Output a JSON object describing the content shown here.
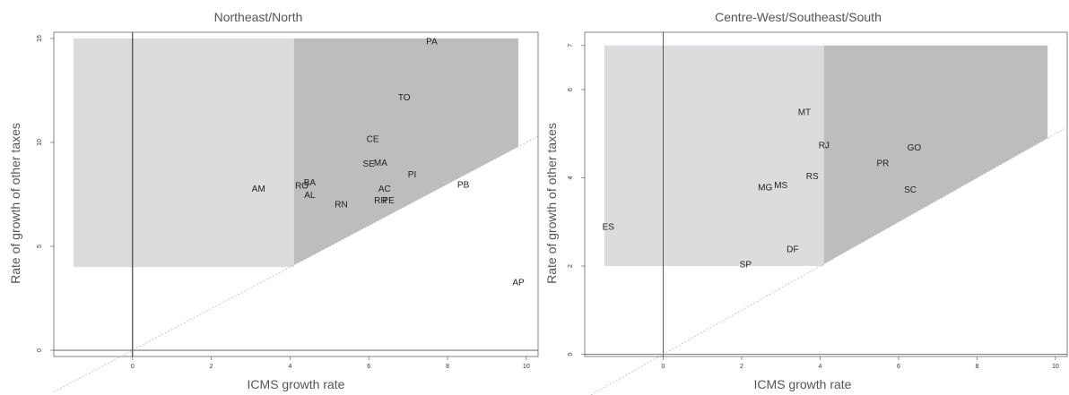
{
  "chart_data": [
    {
      "type": "scatter",
      "title": "Northeast/North",
      "xlabel": "ICMS growth rate",
      "ylabel": "Rate of growth of other taxes",
      "xlim": [
        -2,
        10.3
      ],
      "ylim": [
        -0.3,
        15.3
      ],
      "xticks": [
        "0",
        "2",
        "4",
        "6",
        "8",
        "10"
      ],
      "yticks": [
        "0",
        "5",
        "10",
        "15"
      ],
      "reference_lines": {
        "vertical_at_x": 0,
        "horizontal_at_y": 0,
        "dotted_45_degree": true
      },
      "shaded_regions": {
        "light": {
          "x": [
            -1.5,
            4.1
          ],
          "y": [
            4,
            15
          ]
        },
        "dark": {
          "x_from": 4.1,
          "x_to": 9.8,
          "y_top": 15,
          "lower_boundary": "y = x"
        }
      },
      "points": [
        {
          "label": "PA",
          "x": 7.6,
          "y": 14.9
        },
        {
          "label": "TO",
          "x": 6.9,
          "y": 12.2
        },
        {
          "label": "CE",
          "x": 6.1,
          "y": 10.2
        },
        {
          "label": "SE",
          "x": 6.0,
          "y": 9.0
        },
        {
          "label": "MA",
          "x": 6.3,
          "y": 9.05
        },
        {
          "label": "PI",
          "x": 7.1,
          "y": 8.5
        },
        {
          "label": "PB",
          "x": 8.4,
          "y": 8.0
        },
        {
          "label": "AM",
          "x": 3.2,
          "y": 7.8
        },
        {
          "label": "RO",
          "x": 4.3,
          "y": 7.95
        },
        {
          "label": "BA",
          "x": 4.5,
          "y": 8.1
        },
        {
          "label": "AL",
          "x": 4.5,
          "y": 7.5
        },
        {
          "label": "AC",
          "x": 6.4,
          "y": 7.8
        },
        {
          "label": "RR",
          "x": 6.3,
          "y": 7.25
        },
        {
          "label": "PE",
          "x": 6.5,
          "y": 7.25
        },
        {
          "label": "RN",
          "x": 5.3,
          "y": 7.05
        },
        {
          "label": "AP",
          "x": 9.8,
          "y": 3.3
        }
      ]
    },
    {
      "type": "scatter",
      "title": "Centre-West/Southeast/South",
      "xlabel": "ICMS growth rate",
      "ylabel": "Rate of growth of other taxes",
      "xlim": [
        -2,
        10.3
      ],
      "ylim": [
        -0.05,
        7.3
      ],
      "xticks": [
        "0",
        "2",
        "4",
        "6",
        "8",
        "10"
      ],
      "yticks": [
        "0",
        "2",
        "4",
        "6",
        "7"
      ],
      "reference_lines": {
        "vertical_at_x": 0,
        "horizontal_at_y": 0,
        "dotted_45_degree": true
      },
      "shaded_regions": {
        "light": {
          "x": [
            -1.5,
            4.1
          ],
          "y": [
            2,
            7
          ]
        },
        "dark": {
          "x_from": 4.1,
          "x_to": 9.8,
          "y_top": 7,
          "lower_boundary": "y = x / 2"
        }
      },
      "points": [
        {
          "label": "MT",
          "x": 3.6,
          "y": 5.5
        },
        {
          "label": "RJ",
          "x": 4.1,
          "y": 4.75
        },
        {
          "label": "GO",
          "x": 6.4,
          "y": 4.7
        },
        {
          "label": "PR",
          "x": 5.6,
          "y": 4.35
        },
        {
          "label": "RS",
          "x": 3.8,
          "y": 4.05
        },
        {
          "label": "MS",
          "x": 3.0,
          "y": 3.85
        },
        {
          "label": "MG",
          "x": 2.6,
          "y": 3.8
        },
        {
          "label": "SC",
          "x": 6.3,
          "y": 3.75
        },
        {
          "label": "ES",
          "x": -1.4,
          "y": 2.9
        },
        {
          "label": "DF",
          "x": 3.3,
          "y": 2.4
        },
        {
          "label": "SP",
          "x": 2.1,
          "y": 2.05
        }
      ]
    }
  ]
}
